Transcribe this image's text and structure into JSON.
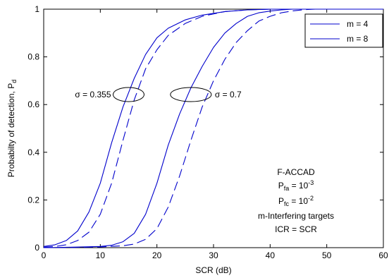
{
  "chart_data": {
    "type": "line",
    "xlabel": "SCR (dB)",
    "ylabel_main": "Probabilty of detection, P",
    "ylabel_sub": "d",
    "xlim": [
      0,
      60
    ],
    "ylim": [
      0,
      1
    ],
    "xticks": [
      "0",
      "10",
      "20",
      "30",
      "40",
      "50",
      "60"
    ],
    "yticks": [
      "0",
      "0.2",
      "0.4",
      "0.6",
      "0.8",
      "1"
    ],
    "grid": false,
    "legend_position": "top-right",
    "legend": [
      {
        "label": "m = 4",
        "style": "solid"
      },
      {
        "label": "m = 8",
        "style": "solid"
      }
    ],
    "series": [
      {
        "group": "sigma-0.355",
        "style": "solid",
        "x": [
          0,
          2,
          4,
          6,
          8,
          10,
          12,
          14,
          16,
          18,
          20,
          22,
          25,
          28,
          32,
          36,
          40,
          45,
          50,
          60
        ],
        "y": [
          0.005,
          0.012,
          0.03,
          0.07,
          0.15,
          0.27,
          0.44,
          0.59,
          0.71,
          0.81,
          0.88,
          0.92,
          0.955,
          0.975,
          0.99,
          0.997,
          1,
          1,
          1,
          1
        ]
      },
      {
        "group": "sigma-0.355",
        "style": "dashed",
        "x": [
          0,
          2,
          4,
          6,
          8,
          10,
          12,
          14,
          16,
          18,
          20,
          22,
          25,
          28,
          32,
          36,
          40,
          45,
          50,
          60
        ],
        "y": [
          0.002,
          0.005,
          0.012,
          0.03,
          0.065,
          0.14,
          0.27,
          0.45,
          0.62,
          0.75,
          0.83,
          0.89,
          0.94,
          0.97,
          0.99,
          0.997,
          1,
          1,
          1,
          1
        ]
      },
      {
        "group": "sigma-0.7",
        "style": "solid",
        "x": [
          0,
          5,
          10,
          12,
          14,
          16,
          18,
          20,
          22,
          24,
          26,
          28,
          30,
          32,
          34,
          36,
          38,
          40,
          42,
          44,
          46,
          50,
          60
        ],
        "y": [
          0,
          0.002,
          0.005,
          0.01,
          0.025,
          0.06,
          0.14,
          0.27,
          0.43,
          0.56,
          0.67,
          0.76,
          0.84,
          0.9,
          0.94,
          0.97,
          0.985,
          0.992,
          0.997,
          1,
          1,
          1,
          1
        ]
      },
      {
        "group": "sigma-0.7",
        "style": "dashed",
        "x": [
          0,
          5,
          10,
          14,
          16,
          18,
          20,
          22,
          24,
          26,
          28,
          30,
          32,
          34,
          36,
          38,
          40,
          42,
          44,
          46,
          48,
          50,
          60
        ],
        "y": [
          0,
          0.001,
          0.003,
          0.008,
          0.015,
          0.035,
          0.08,
          0.17,
          0.3,
          0.45,
          0.59,
          0.7,
          0.79,
          0.86,
          0.91,
          0.95,
          0.97,
          0.985,
          0.993,
          0.998,
          1,
          1,
          1
        ]
      }
    ],
    "annotations": {
      "sigma_left": {
        "text": "σ = 0.355",
        "x": 15,
        "y": 0.642
      },
      "sigma_right": {
        "text": "σ = 0.7",
        "x": 26,
        "y": 0.642
      }
    },
    "info_block": {
      "line1": "F-ACCAD",
      "line2_main": "P",
      "line2_sub": "fa",
      "line2_rest": " = 10",
      "line2_sup": "-3",
      "line3_main": "P",
      "line3_sub": "fc",
      "line3_rest": " = 10",
      "line3_sup": "-2",
      "line4": "m-Interfering targets",
      "line5": "ICR = SCR"
    },
    "colors": {
      "line": "#0000cc",
      "axis": "#000000"
    }
  }
}
